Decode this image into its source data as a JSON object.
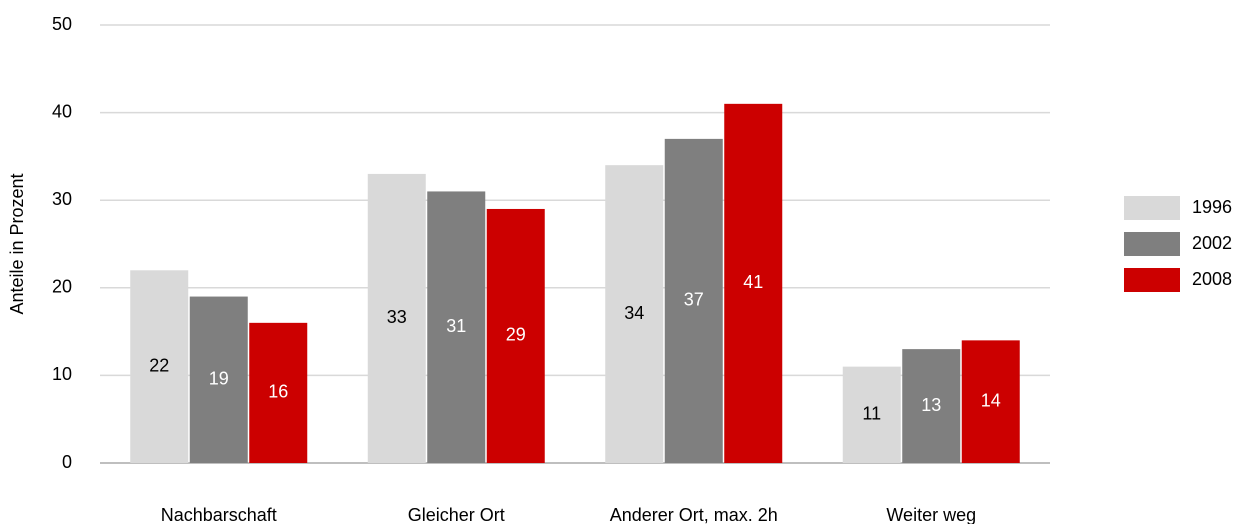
{
  "chart_data": {
    "type": "bar",
    "y_label": "Anteile in Prozent",
    "categories": [
      "Nachbarschaft",
      "Gleicher Ort",
      "Anderer Ort, max. 2h",
      "Weiter weg"
    ],
    "series": [
      {
        "name": "1996",
        "color": "#d9d9d9",
        "values": [
          22,
          33,
          34,
          11
        ]
      },
      {
        "name": "2002",
        "color": "#7f7f7f",
        "values": [
          19,
          31,
          37,
          13
        ]
      },
      {
        "name": "2008",
        "color": "#cc0000",
        "values": [
          16,
          29,
          41,
          14
        ]
      }
    ],
    "ylim": [
      0,
      50
    ],
    "yticks": [
      0,
      10,
      20,
      30,
      40,
      50
    ],
    "grid": true,
    "legend": "right"
  }
}
